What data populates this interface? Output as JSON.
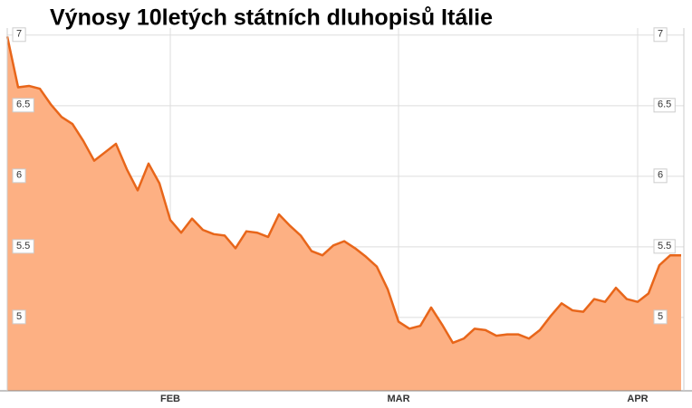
{
  "chart_data": {
    "type": "area",
    "title": "Výnosy 10letých státních dluhopisů Itálie",
    "categories": [
      null,
      null,
      null,
      null,
      null,
      null,
      null,
      null,
      null,
      null,
      null,
      null,
      null,
      null,
      null,
      "FEB",
      null,
      null,
      null,
      null,
      null,
      null,
      null,
      null,
      null,
      null,
      null,
      null,
      null,
      null,
      null,
      null,
      null,
      null,
      null,
      null,
      "MAR",
      null,
      null,
      null,
      null,
      null,
      null,
      null,
      null,
      null,
      null,
      null,
      null,
      null,
      null,
      null,
      null,
      null,
      null,
      null,
      null,
      null,
      "APR",
      null,
      null,
      null,
      null
    ],
    "values": [
      6.99,
      6.63,
      6.64,
      6.62,
      6.51,
      6.42,
      6.37,
      6.25,
      6.11,
      6.17,
      6.23,
      6.05,
      5.9,
      6.09,
      5.95,
      5.69,
      5.6,
      5.7,
      5.62,
      5.59,
      5.58,
      5.49,
      5.61,
      5.6,
      5.57,
      5.73,
      5.65,
      5.58,
      5.47,
      5.44,
      5.51,
      5.54,
      5.49,
      5.43,
      5.36,
      5.2,
      4.97,
      4.92,
      4.94,
      5.07,
      4.95,
      4.82,
      4.85,
      4.92,
      4.91,
      4.87,
      4.88,
      4.88,
      4.85,
      4.91,
      5.01,
      5.1,
      5.05,
      5.04,
      5.13,
      5.11,
      5.21,
      5.13,
      5.11,
      5.17,
      5.37,
      5.44,
      5.44
    ],
    "line_color": "#e8661a",
    "fill_color": "#fdb083",
    "ylim": [
      4.48,
      7.05
    ],
    "yticks": [
      5,
      5.5,
      6,
      6.5,
      7
    ],
    "grid": true
  }
}
